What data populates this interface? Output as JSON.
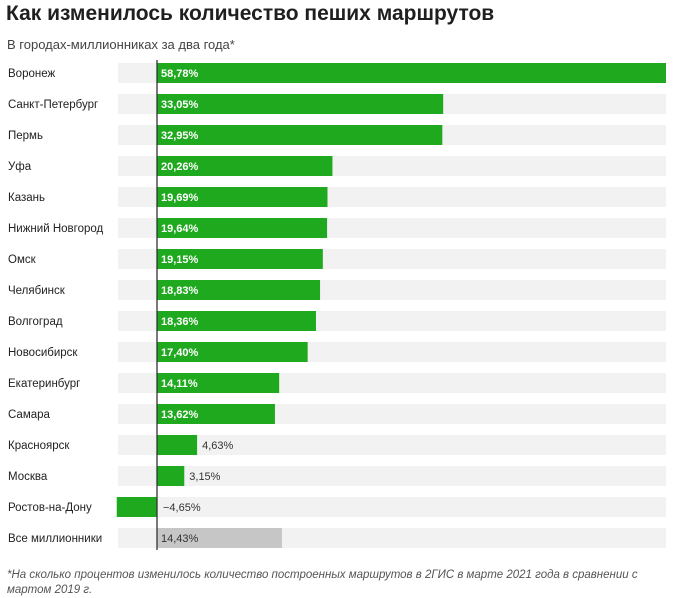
{
  "title": "Как изменилось количество пеших маршрутов",
  "subtitle": "В городах-миллионниках за два года*",
  "footnote": "*На сколько процентов изменилось количество построенных маршрутов в 2ГИС в марте 2021 года в сравнении с мартом 2019 г.",
  "colors": {
    "bar": "#1fa91f",
    "avg_bar": "#c6c6c6",
    "track": "#f2f2f2",
    "axis": "#333333"
  },
  "chart_data": {
    "type": "bar",
    "orientation": "horizontal",
    "categories": [
      "Воронеж",
      "Санкт-Петербург",
      "Пермь",
      "Уфа",
      "Казань",
      "Нижний Новгород",
      "Омск",
      "Челябинск",
      "Волгоград",
      "Новосибирск",
      "Екатеринбург",
      "Самара",
      "Красноярск",
      "Москва",
      "Ростов-на-Дону",
      "Все миллионники"
    ],
    "values": [
      58.78,
      33.05,
      32.95,
      20.26,
      19.69,
      19.64,
      19.15,
      18.83,
      18.36,
      17.4,
      14.11,
      13.62,
      4.63,
      3.15,
      -4.65,
      14.43
    ],
    "value_labels": [
      "58,78%",
      "33,05%",
      "32,95%",
      "20,26%",
      "19,69%",
      "19,64%",
      "19,15%",
      "18,83%",
      "18,36%",
      "17,40%",
      "14,11%",
      "13,62%",
      "4,63%",
      "3,15%",
      "−4,65%",
      "14,43%"
    ],
    "xlim": [
      -4.65,
      58.78
    ],
    "grid": false
  }
}
